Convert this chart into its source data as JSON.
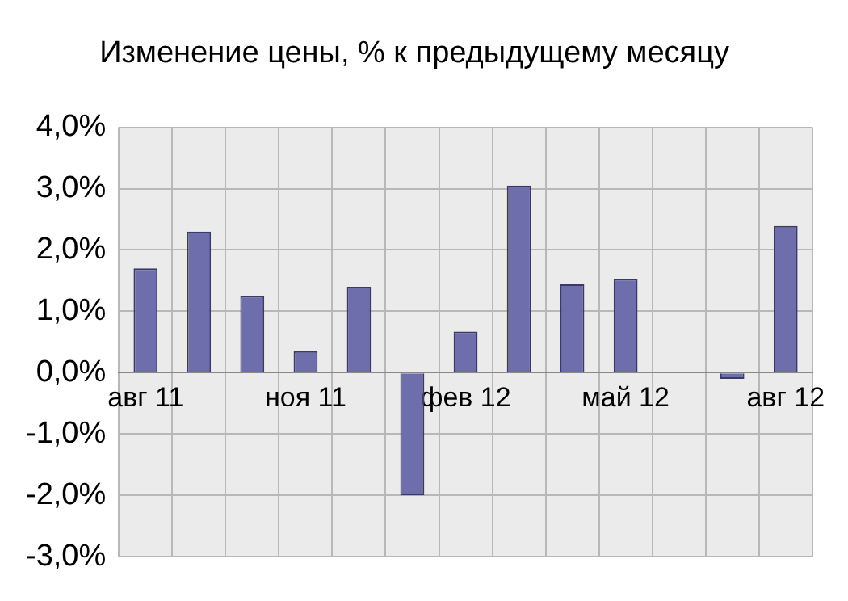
{
  "chart_data": {
    "type": "bar",
    "title": "Изменение цены, % к предыдущему месяцу",
    "categories": [
      "авг 11",
      null,
      null,
      "ноя 11",
      null,
      null,
      "фев 12",
      null,
      null,
      "май 12",
      null,
      null,
      "авг 12"
    ],
    "values": [
      1.7,
      2.3,
      1.25,
      0.35,
      1.4,
      -2.0,
      0.67,
      3.05,
      1.44,
      1.53,
      0.0,
      -0.1,
      2.39
    ],
    "color": "#6e6eac",
    "ylim": [
      -3,
      4
    ],
    "yticks": [
      {
        "value": -3,
        "label": "-3,0%"
      },
      {
        "value": -2,
        "label": "-2,0%"
      },
      {
        "value": -1,
        "label": "-1,0%"
      },
      {
        "value": 0,
        "label": "0,0%"
      },
      {
        "value": 1,
        "label": "1,0%"
      },
      {
        "value": 2,
        "label": "2,0%"
      },
      {
        "value": 3,
        "label": "3,0%"
      },
      {
        "value": 4,
        "label": "4,0%"
      }
    ],
    "grid": true
  }
}
